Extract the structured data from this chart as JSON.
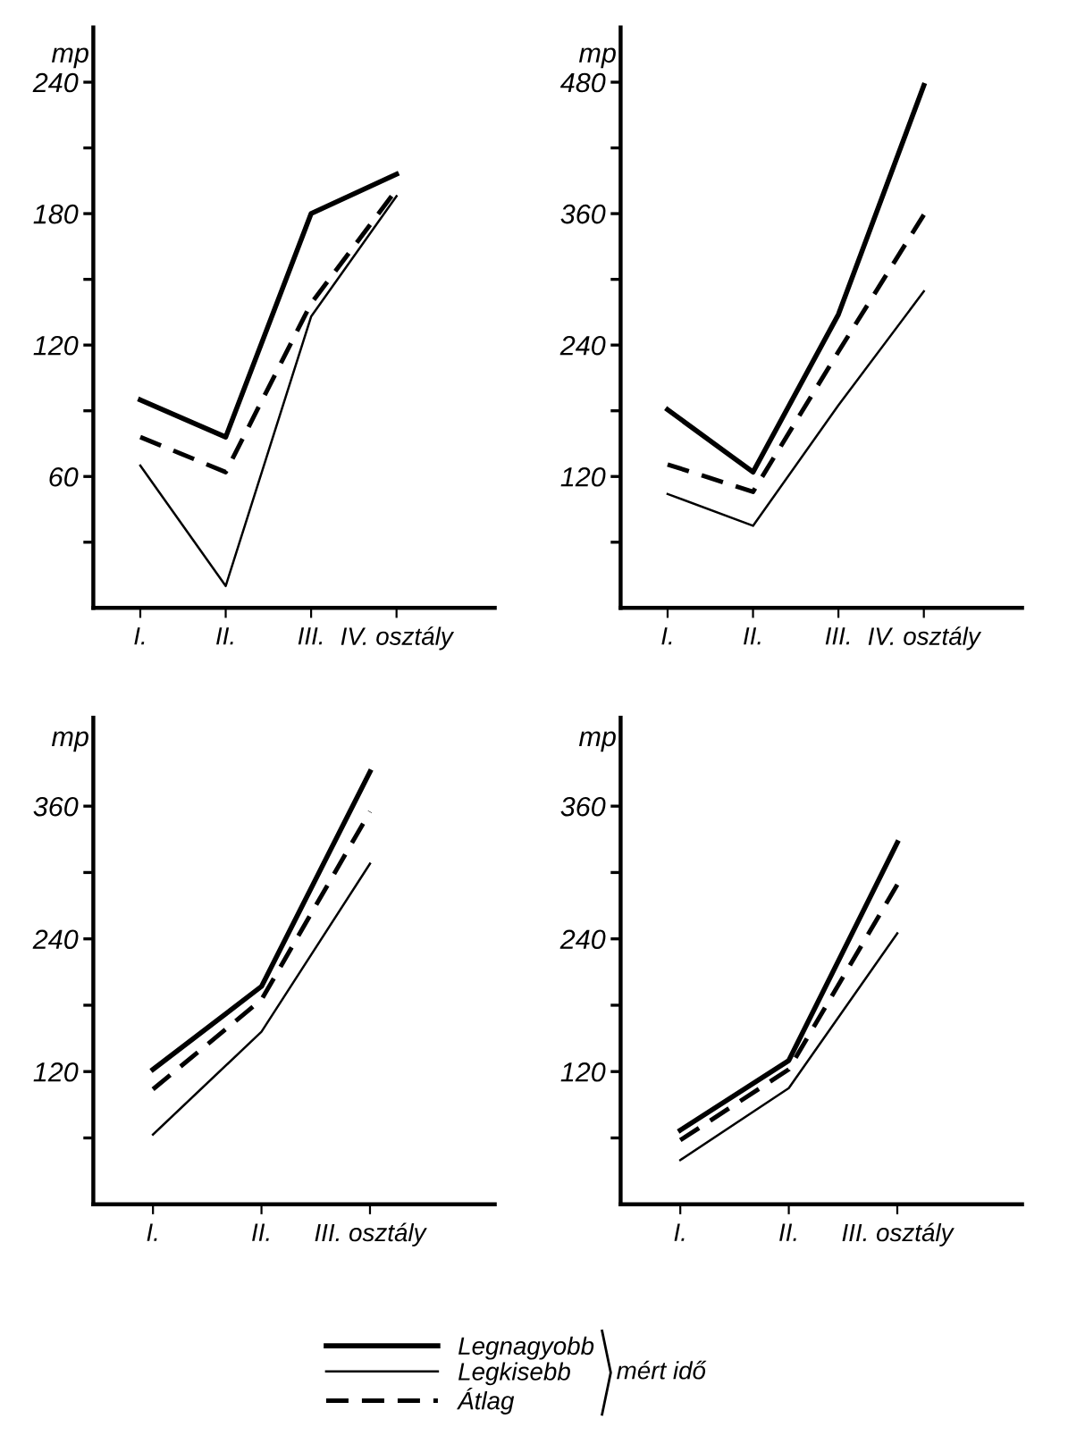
{
  "chart_data": [
    {
      "type": "line",
      "ylabel": "mp",
      "categories": [
        "I.",
        "II.",
        "III.",
        "IV. osztály"
      ],
      "ylim": [
        0,
        265
      ],
      "yticks": [
        {
          "value": 30,
          "label": null
        },
        60,
        {
          "value": 90,
          "label": null
        },
        120,
        {
          "value": 150,
          "label": null
        },
        180,
        {
          "value": 210,
          "label": null
        },
        240
      ],
      "grid": false,
      "legend": "bottom",
      "annotations": [
        "mért idő"
      ],
      "series": [
        {
          "name": "Legnagyobb",
          "color": "#000000",
          "line_style": "solid",
          "values": [
            95,
            78,
            180,
            198
          ]
        },
        {
          "name": "Legkisebb",
          "color": "#000000",
          "line_style": "solid",
          "values": [
            65,
            10,
            133,
            188
          ]
        },
        {
          "name": "Átlag",
          "color": "#000000",
          "line_style": "dashed",
          "values": [
            78,
            62,
            139,
            191
          ]
        }
      ]
    },
    {
      "type": "line",
      "ylabel": "mp",
      "categories": [
        "I.",
        "II.",
        "III.",
        "IV. osztály"
      ],
      "ylim": [
        0,
        530
      ],
      "yticks": [
        {
          "value": 60,
          "label": null
        },
        120,
        {
          "value": 180,
          "label": null
        },
        240,
        {
          "value": 300,
          "label": null
        },
        360,
        {
          "value": 420,
          "label": null
        },
        480
      ],
      "grid": false,
      "series": [
        {
          "color": "#000000",
          "line_style": "solid",
          "values": [
            181,
            124,
            268,
            477
          ]
        },
        {
          "color": "#000000",
          "line_style": "solid",
          "values": [
            104,
            75,
            185,
            289
          ]
        },
        {
          "color": "#000000",
          "line_style": "dashed",
          "values": [
            131,
            106,
            234,
            359
          ]
        }
      ]
    },
    {
      "type": "line",
      "ylabel": "mp",
      "categories": [
        "I.",
        "II.",
        "III. osztály"
      ],
      "ylim": [
        0,
        440
      ],
      "yticks": [
        {
          "value": 60,
          "label": null
        },
        120,
        {
          "value": 180,
          "label": null
        },
        240,
        {
          "value": 300,
          "label": null
        },
        360
      ],
      "grid": false,
      "series": [
        {
          "color": "#000000",
          "line_style": "solid",
          "values": [
            122,
            197,
            391
          ]
        },
        {
          "color": "#000000",
          "line_style": "solid",
          "values": [
            63,
            156,
            308
          ]
        },
        {
          "color": "#000000",
          "line_style": "dashed",
          "values": [
            104,
            185,
            355
          ]
        }
      ]
    },
    {
      "type": "line",
      "ylabel": "mp",
      "categories": [
        "I.",
        "II.",
        "III. osztály"
      ],
      "ylim": [
        0,
        440
      ],
      "yticks": [
        {
          "value": 60,
          "label": null
        },
        120,
        {
          "value": 180,
          "label": null
        },
        240,
        {
          "value": 300,
          "label": null
        },
        360
      ],
      "grid": false,
      "series": [
        {
          "color": "#000000",
          "line_style": "solid",
          "values": [
            67,
            130,
            327
          ]
        },
        {
          "color": "#000000",
          "line_style": "solid",
          "values": [
            40,
            105,
            245
          ]
        },
        {
          "color": "#000000",
          "line_style": "dashed",
          "values": [
            58,
            122,
            289
          ]
        }
      ]
    }
  ]
}
